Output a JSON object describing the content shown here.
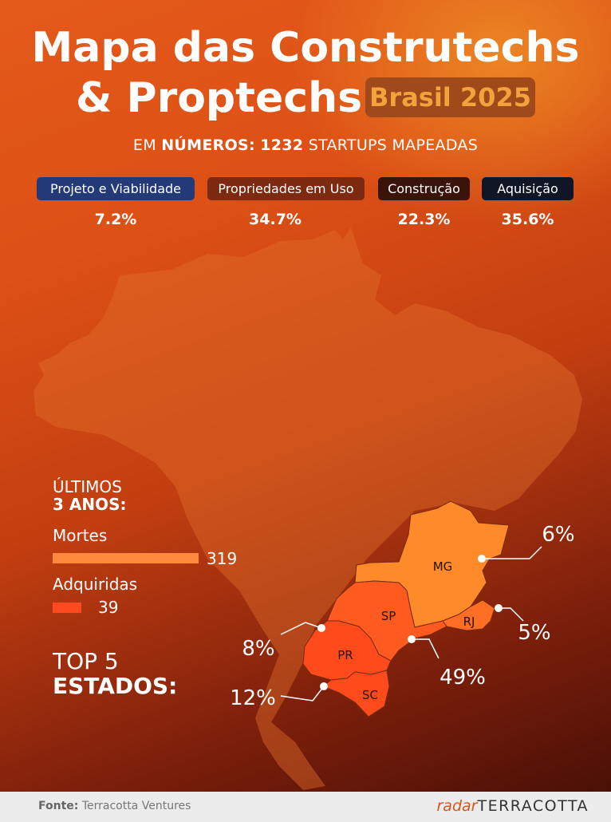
{
  "header": {
    "title_line1": "Mapa das Construtechs",
    "title_line2": "& Proptechs",
    "badge": "Brasil 2025",
    "subtitle_pre": "EM",
    "subtitle_bold1": "NÚMEROS:",
    "subtitle_bold2": "1232",
    "subtitle_post": "STARTUPS MAPEADAS"
  },
  "categories": [
    {
      "label": "Projeto e Viabilidade",
      "value": "7.2%",
      "color": "#233a78"
    },
    {
      "label": "Propriedades em Uso",
      "value": "34.7%",
      "color": "#7c2a10"
    },
    {
      "label": "Construção",
      "value": "22.3%",
      "color": "#3a130a"
    },
    {
      "label": "Aquisição",
      "value": "35.6%",
      "color": "#101626"
    }
  ],
  "last_years": {
    "heading1": "ÚLTIMOS",
    "heading2": "3 ANOS:",
    "deaths_label": "Mortes",
    "deaths_value": 319,
    "deaths_color": "#ff8a3d",
    "acquired_label": "Adquiridas",
    "acquired_value": 39,
    "acquired_color": "#ff4a20"
  },
  "top5": {
    "heading1": "TOP 5",
    "heading2": "ESTADOS:",
    "states": [
      {
        "code": "MG",
        "pct": "6%"
      },
      {
        "code": "RJ",
        "pct": "5%"
      },
      {
        "code": "SP",
        "pct": "49%"
      },
      {
        "code": "PR",
        "pct": "8%"
      },
      {
        "code": "SC",
        "pct": "12%"
      }
    ]
  },
  "footer": {
    "source_label": "Fonte:",
    "source_value": "Terracotta Ventures",
    "brand_radar": "radar",
    "brand_name": "TERRACOTTA"
  }
}
